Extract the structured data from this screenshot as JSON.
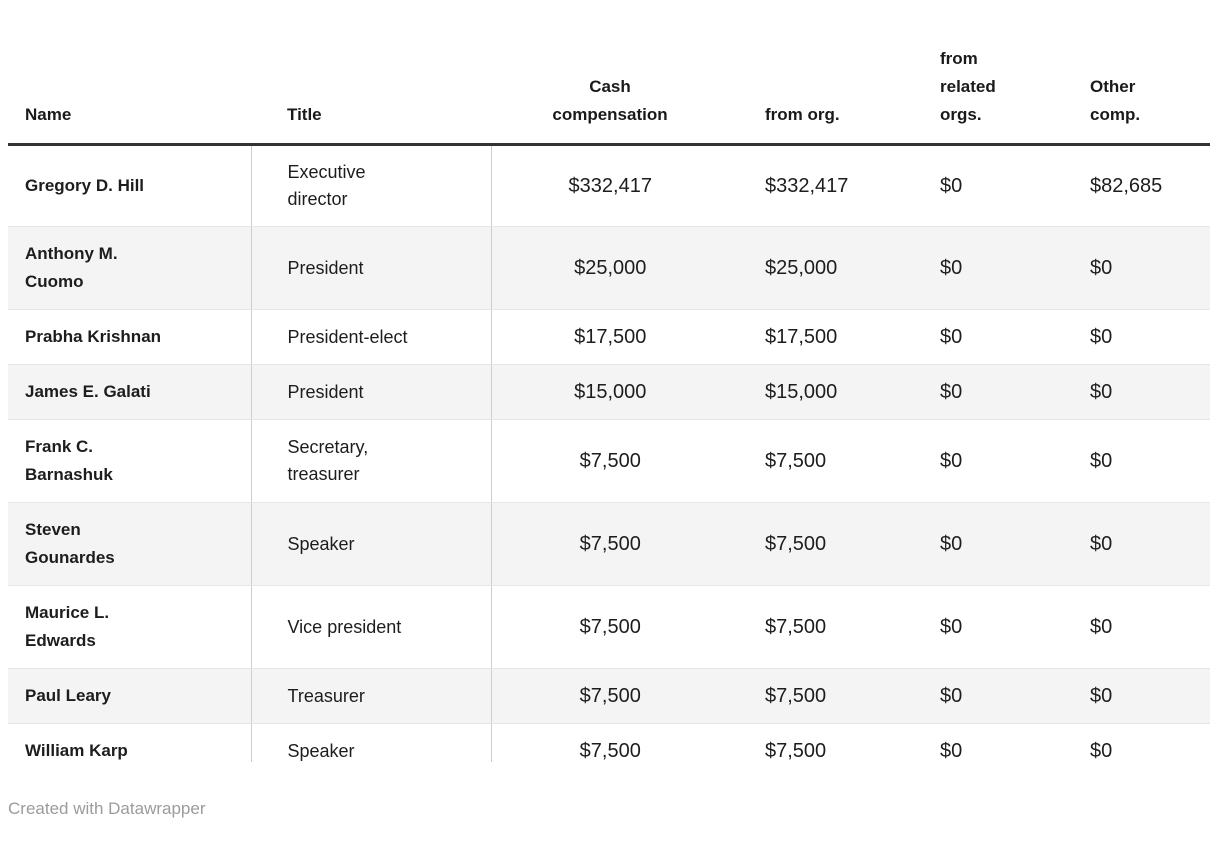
{
  "chart_data": {
    "type": "table",
    "columns": [
      {
        "key": "name",
        "label": "Name"
      },
      {
        "key": "title",
        "label": "Title"
      },
      {
        "key": "cash",
        "label": "Cash\ncompensation"
      },
      {
        "key": "from_org",
        "label": "from org."
      },
      {
        "key": "from_related",
        "label": "from\nrelated\norgs."
      },
      {
        "key": "other",
        "label": "Other\ncomp."
      }
    ],
    "rows": [
      {
        "name": "Gregory D. Hill",
        "title": "Executive\ndirector",
        "cash": "$332,417",
        "from_org": "$332,417",
        "from_related": "$0",
        "other": "$82,685"
      },
      {
        "name": "Anthony M.\nCuomo",
        "title": "President",
        "cash": "$25,000",
        "from_org": "$25,000",
        "from_related": "$0",
        "other": "$0"
      },
      {
        "name": "Prabha Krishnan",
        "title": "President-elect",
        "cash": "$17,500",
        "from_org": "$17,500",
        "from_related": "$0",
        "other": "$0"
      },
      {
        "name": "James E. Galati",
        "title": "President",
        "cash": "$15,000",
        "from_org": "$15,000",
        "from_related": "$0",
        "other": "$0"
      },
      {
        "name": "Frank C.\nBarnashuk",
        "title": "Secretary,\ntreasurer",
        "cash": "$7,500",
        "from_org": "$7,500",
        "from_related": "$0",
        "other": "$0"
      },
      {
        "name": "Steven\nGounardes",
        "title": "Speaker",
        "cash": "$7,500",
        "from_org": "$7,500",
        "from_related": "$0",
        "other": "$0"
      },
      {
        "name": "Maurice L.\nEdwards",
        "title": "Vice president",
        "cash": "$7,500",
        "from_org": "$7,500",
        "from_related": "$0",
        "other": "$0"
      },
      {
        "name": "Paul Leary",
        "title": "Treasurer",
        "cash": "$7,500",
        "from_org": "$7,500",
        "from_related": "$0",
        "other": "$0"
      },
      {
        "name": "William Karp",
        "title": "Speaker",
        "cash": "$7,500",
        "from_org": "$7,500",
        "from_related": "$0",
        "other": "$0"
      }
    ]
  },
  "footer": {
    "credit": "Created with Datawrapper"
  },
  "colors": {
    "text": "#1d1d1d",
    "header_text": "#1a1a1a",
    "stripe": "#f4f4f4",
    "row_border": "#e6e6e6",
    "column_border": "#cdcdcd",
    "header_border": "#333333",
    "footer_text": "#9b9b9b",
    "background": "#ffffff"
  }
}
